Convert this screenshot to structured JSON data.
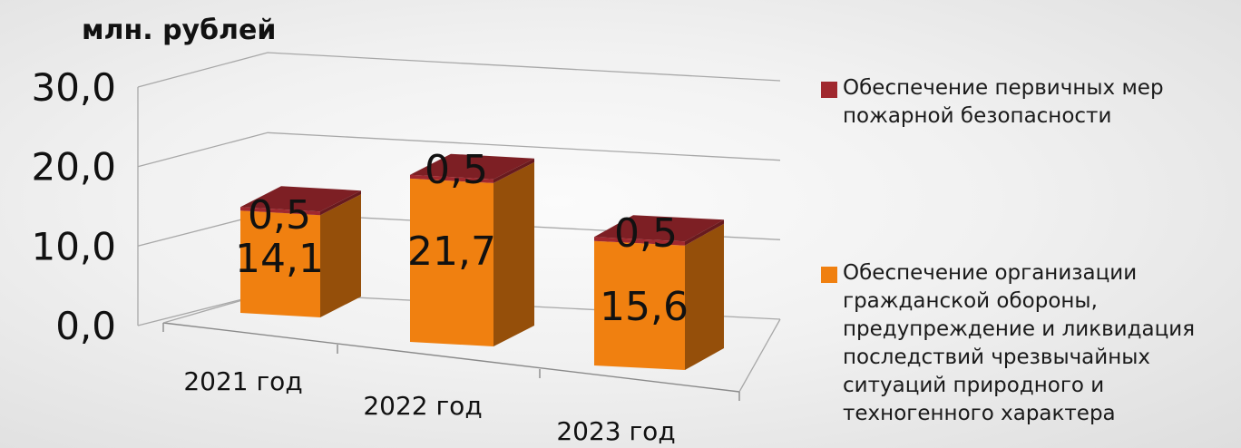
{
  "chart_data": {
    "type": "bar",
    "stacked": true,
    "three_d": true,
    "ylabel": "млн. рублей",
    "ylim": [
      0,
      30
    ],
    "yticks": [
      "0,0",
      "10,0",
      "20,0",
      "30,0"
    ],
    "grid": true,
    "legend_position": "right",
    "categories": [
      "2021 год",
      "2022 год",
      "2023 год"
    ],
    "series": [
      {
        "name": "Обеспечение организации гражданской обороны, предупреждение и ликвидация последствий чрезвычайных ситуаций природного и техногенного характера",
        "values": [
          14.1,
          21.7,
          15.6
        ],
        "labels": [
          "14,1",
          "21,7",
          "15,6"
        ],
        "color": "#f08010"
      },
      {
        "name": "Обеспечение первичных мер пожарной безопасности",
        "values": [
          0.5,
          0.5,
          0.5
        ],
        "labels": [
          "0,5",
          "0,5",
          "0,5"
        ],
        "color": "#a0282e"
      }
    ]
  },
  "legend": {
    "items": [
      {
        "label": "Обеспечение первичных мер\nпожарной безопасности",
        "color": "#a0282e"
      },
      {
        "label": "Обеспечение организации\nгражданской обороны,\nпредупреждение и ликвидация\nпоследствий чрезвычайных\nситуаций природного и\nтехногенного характера",
        "color": "#f08010"
      }
    ]
  }
}
